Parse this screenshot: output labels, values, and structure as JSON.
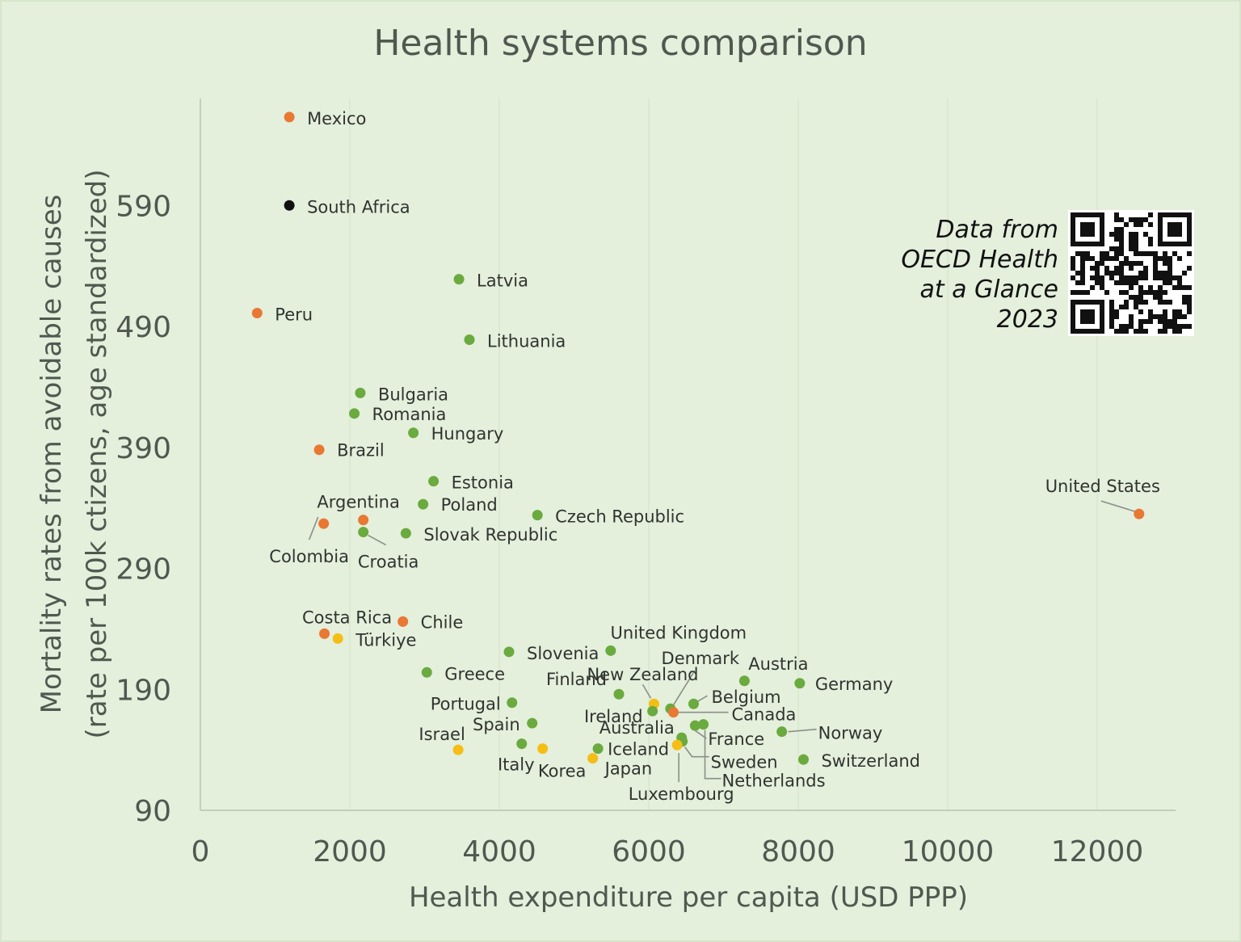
{
  "chart_data": {
    "type": "scatter",
    "title": "Health systems comparison",
    "xlabel": "Health expenditure per capita (USD PPP)",
    "ylabel": [
      "Mortality rates from avoidable causes",
      "(rate per 100k ctizens, age standardized)"
    ],
    "xlim": [
      0,
      13000
    ],
    "ylim": [
      90,
      680
    ],
    "xticks": [
      0,
      2000,
      4000,
      6000,
      8000,
      10000,
      12000
    ],
    "yticks": [
      90,
      190,
      290,
      390,
      490,
      590
    ],
    "grid": "vertical",
    "colors": {
      "green": "#6aaa3e",
      "orange": "#e87832",
      "yellow": "#f5be14",
      "black": "#111111"
    },
    "annotation": [
      "Data from",
      "OECD Health",
      "at a Glance",
      "2023"
    ],
    "points": [
      {
        "label": "Mexico",
        "x": 1190,
        "y": 663,
        "color": "orange"
      },
      {
        "label": "South Africa",
        "x": 1190,
        "y": 590,
        "color": "black"
      },
      {
        "label": "Peru",
        "x": 760,
        "y": 501,
        "color": "orange"
      },
      {
        "label": "Latvia",
        "x": 3460,
        "y": 529,
        "color": "green"
      },
      {
        "label": "Lithuania",
        "x": 3600,
        "y": 479,
        "color": "green"
      },
      {
        "label": "Bulgaria",
        "x": 2140,
        "y": 435,
        "color": "green"
      },
      {
        "label": "Romania",
        "x": 2060,
        "y": 418,
        "color": "green"
      },
      {
        "label": "Hungary",
        "x": 2850,
        "y": 402,
        "color": "green"
      },
      {
        "label": "Brazil",
        "x": 1590,
        "y": 388,
        "color": "orange"
      },
      {
        "label": "Estonia",
        "x": 3120,
        "y": 362,
        "color": "green"
      },
      {
        "label": "Poland",
        "x": 2980,
        "y": 343,
        "color": "green"
      },
      {
        "label": "Czech Republic",
        "x": 4510,
        "y": 334,
        "color": "green"
      },
      {
        "label": "Argentina",
        "x": 2180,
        "y": 330,
        "color": "orange"
      },
      {
        "label": "Colombia",
        "x": 1650,
        "y": 327,
        "color": "orange"
      },
      {
        "label": "Croatia",
        "x": 2180,
        "y": 320,
        "color": "green"
      },
      {
        "label": "Slovak Republic",
        "x": 2750,
        "y": 319,
        "color": "green"
      },
      {
        "label": "United States",
        "x": 12560,
        "y": 335,
        "color": "orange"
      },
      {
        "label": "Chile",
        "x": 2710,
        "y": 246,
        "color": "orange"
      },
      {
        "label": "Costa Rica",
        "x": 1660,
        "y": 236,
        "color": "orange"
      },
      {
        "label": "Türkiye",
        "x": 1840,
        "y": 232,
        "color": "yellow"
      },
      {
        "label": "Slovenia",
        "x": 4130,
        "y": 221,
        "color": "green"
      },
      {
        "label": "United Kingdom",
        "x": 5490,
        "y": 222,
        "color": "green"
      },
      {
        "label": "Greece",
        "x": 3030,
        "y": 204,
        "color": "green"
      },
      {
        "label": "Austria",
        "x": 7280,
        "y": 197,
        "color": "green"
      },
      {
        "label": "Germany",
        "x": 8020,
        "y": 195,
        "color": "green"
      },
      {
        "label": "Finland",
        "x": 5600,
        "y": 186,
        "color": "green"
      },
      {
        "label": "Denmark",
        "x": 6290,
        "y": 174,
        "color": "green"
      },
      {
        "label": "New Zealand",
        "x": 6070,
        "y": 178,
        "color": "yellow"
      },
      {
        "label": "Belgium",
        "x": 6600,
        "y": 178,
        "color": "green"
      },
      {
        "label": "Canada",
        "x": 6330,
        "y": 171,
        "color": "orange"
      },
      {
        "label": "Portugal",
        "x": 4170,
        "y": 179,
        "color": "green"
      },
      {
        "label": "Ireland",
        "x": 6050,
        "y": 172,
        "color": "green"
      },
      {
        "label": "Spain",
        "x": 4440,
        "y": 162,
        "color": "green"
      },
      {
        "label": "France",
        "x": 6620,
        "y": 160,
        "color": "green"
      },
      {
        "label": "Netherlands",
        "x": 6730,
        "y": 161,
        "color": "green"
      },
      {
        "label": "Norway",
        "x": 7780,
        "y": 155,
        "color": "green"
      },
      {
        "label": "Australia",
        "x": 6440,
        "y": 150,
        "color": "green"
      },
      {
        "label": "Sweden",
        "x": 6450,
        "y": 147,
        "color": "green"
      },
      {
        "label": "Luxembourg",
        "x": 6380,
        "y": 144,
        "color": "yellow"
      },
      {
        "label": "Italy",
        "x": 4300,
        "y": 145,
        "color": "green"
      },
      {
        "label": "Korea",
        "x": 4580,
        "y": 141,
        "color": "yellow"
      },
      {
        "label": "Israel",
        "x": 3450,
        "y": 140,
        "color": "yellow"
      },
      {
        "label": "Iceland",
        "x": 5320,
        "y": 141,
        "color": "green"
      },
      {
        "label": "Japan",
        "x": 5250,
        "y": 133,
        "color": "yellow"
      },
      {
        "label": "Switzerland",
        "x": 8070,
        "y": 132,
        "color": "green"
      }
    ]
  }
}
